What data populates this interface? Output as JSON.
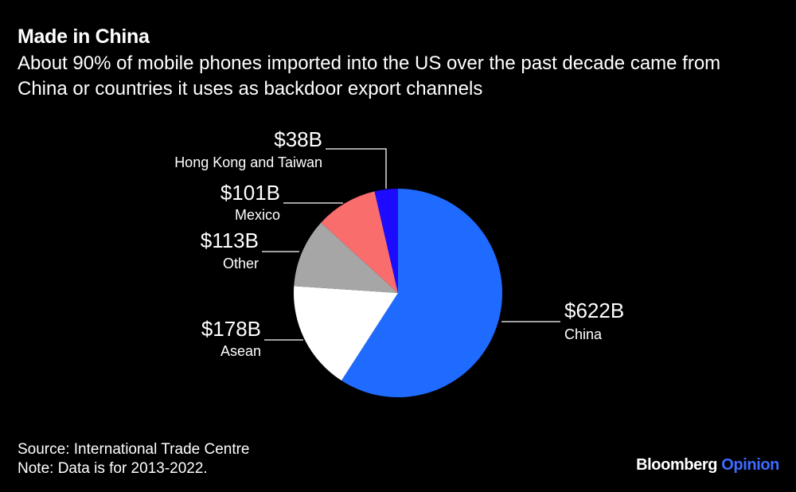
{
  "header": {
    "title": "Made in China",
    "subtitle": "About 90% of mobile phones imported into the US over the past decade came from China or countries it uses as backdoor export channels"
  },
  "chart_data": {
    "type": "pie",
    "start": "top",
    "direction": "clockwise",
    "slices": [
      {
        "label": "China",
        "value_label": "$622B",
        "value": 622,
        "color": "#1f6bff"
      },
      {
        "label": "Asean",
        "value_label": "$178B",
        "value": 178,
        "color": "#ffffff"
      },
      {
        "label": "Other",
        "value_label": "$113B",
        "value": 113,
        "color": "#a6a6a6"
      },
      {
        "label": "Mexico",
        "value_label": "$101B",
        "value": 101,
        "color": "#fa6d6d"
      },
      {
        "label": "Hong Kong and Taiwan",
        "value_label": "$38B",
        "value": 38,
        "color": "#1d0bff"
      }
    ]
  },
  "footer": {
    "source": "Source: International Trade Centre",
    "note": "Note: Data is for 2013-2022."
  },
  "brand": {
    "name": "Bloomberg",
    "section": "Opinion"
  }
}
